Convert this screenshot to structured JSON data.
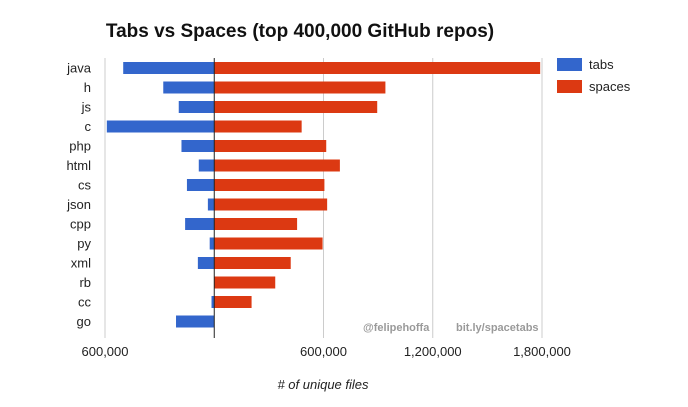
{
  "chart_data": {
    "type": "bar",
    "orientation": "horizontal",
    "title": "Tabs vs Spaces (top 400,000 GitHub repos)",
    "xlabel": "# of unique files",
    "ylabel": "",
    "categories": [
      "java",
      "h",
      "js",
      "c",
      "php",
      "html",
      "cs",
      "json",
      "cpp",
      "py",
      "xml",
      "rb",
      "cc",
      "go"
    ],
    "series": [
      {
        "name": "tabs",
        "color": "#3366cc",
        "values": [
          500000,
          280000,
          195000,
          590000,
          180000,
          85000,
          150000,
          35000,
          160000,
          25000,
          90000,
          0,
          15000,
          210000
        ]
      },
      {
        "name": "spaces",
        "color": "#dc3912",
        "values": [
          1790000,
          940000,
          895000,
          480000,
          615000,
          690000,
          605000,
          620000,
          455000,
          595000,
          420000,
          335000,
          205000,
          0
        ]
      }
    ],
    "xlim": [
      -600000,
      1800000
    ],
    "xticks": [
      -600000,
      0,
      600000,
      1200000,
      1800000
    ],
    "xtick_labels": [
      "600,000",
      "",
      "600,000",
      "1,200,000",
      "1,800,000"
    ],
    "grid": true,
    "legend": "right",
    "annotations": [
      "@felipehoffa",
      "bit.ly/spacetabs"
    ]
  }
}
